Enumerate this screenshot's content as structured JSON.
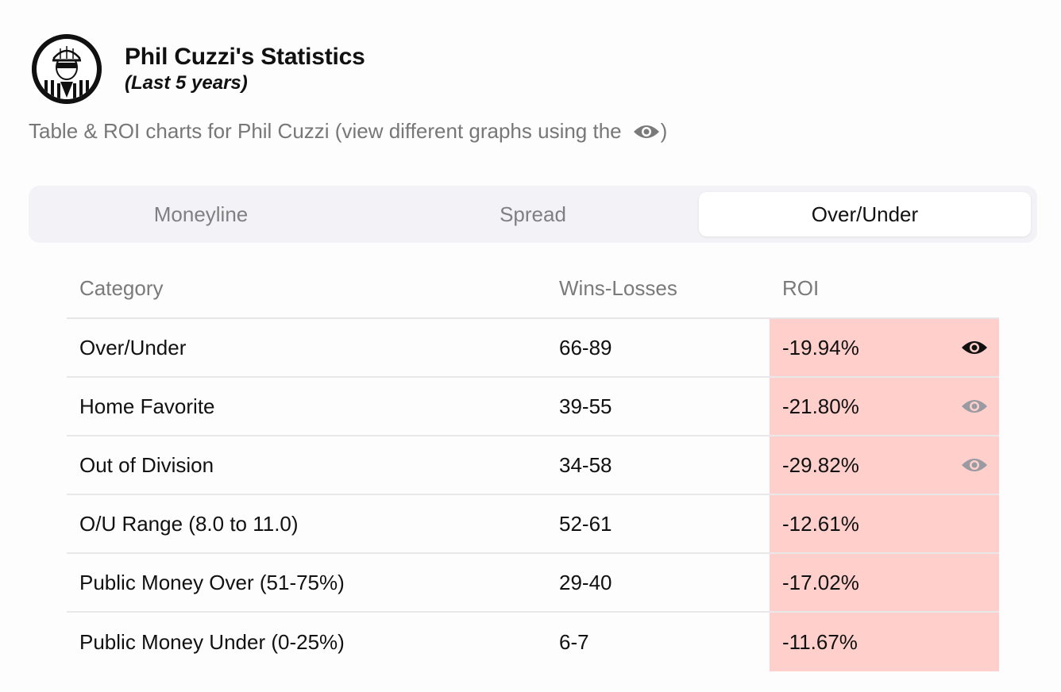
{
  "header": {
    "title": "Phil Cuzzi's Statistics",
    "subtitle": "(Last 5 years)",
    "avatar_icon": "umpire-avatar-icon"
  },
  "description": {
    "text": "Table & ROI charts for Phil Cuzzi (view different graphs using the",
    "icon": "eye-icon",
    "closing": ")"
  },
  "tabs": [
    {
      "label": "Moneyline",
      "active": false
    },
    {
      "label": "Spread",
      "active": false
    },
    {
      "label": "Over/Under",
      "active": true
    }
  ],
  "table": {
    "headers": {
      "category": "Category",
      "wins_losses": "Wins-Losses",
      "roi": "ROI"
    },
    "rows": [
      {
        "category": "Over/Under",
        "wins_losses": "66-89",
        "roi": "-19.94%",
        "eye": "active"
      },
      {
        "category": "Home Favorite",
        "wins_losses": "39-55",
        "roi": "-21.80%",
        "eye": "inactive"
      },
      {
        "category": "Out of Division",
        "wins_losses": "34-58",
        "roi": "-29.82%",
        "eye": "inactive"
      },
      {
        "category": "O/U Range (8.0 to 11.0)",
        "wins_losses": "52-61",
        "roi": "-12.61%",
        "eye": "none"
      },
      {
        "category": "Public Money Over (51-75%)",
        "wins_losses": "29-40",
        "roi": "-17.02%",
        "eye": "none"
      },
      {
        "category": "Public Money Under (0-25%)",
        "wins_losses": "6-7",
        "roi": "-11.67%",
        "eye": "none"
      }
    ]
  },
  "colors": {
    "negative_roi_bg": "#fecfcb",
    "eye_active": "#111111",
    "eye_inactive": "#9a9aa2",
    "tabs_bg": "#f3f2f7"
  }
}
